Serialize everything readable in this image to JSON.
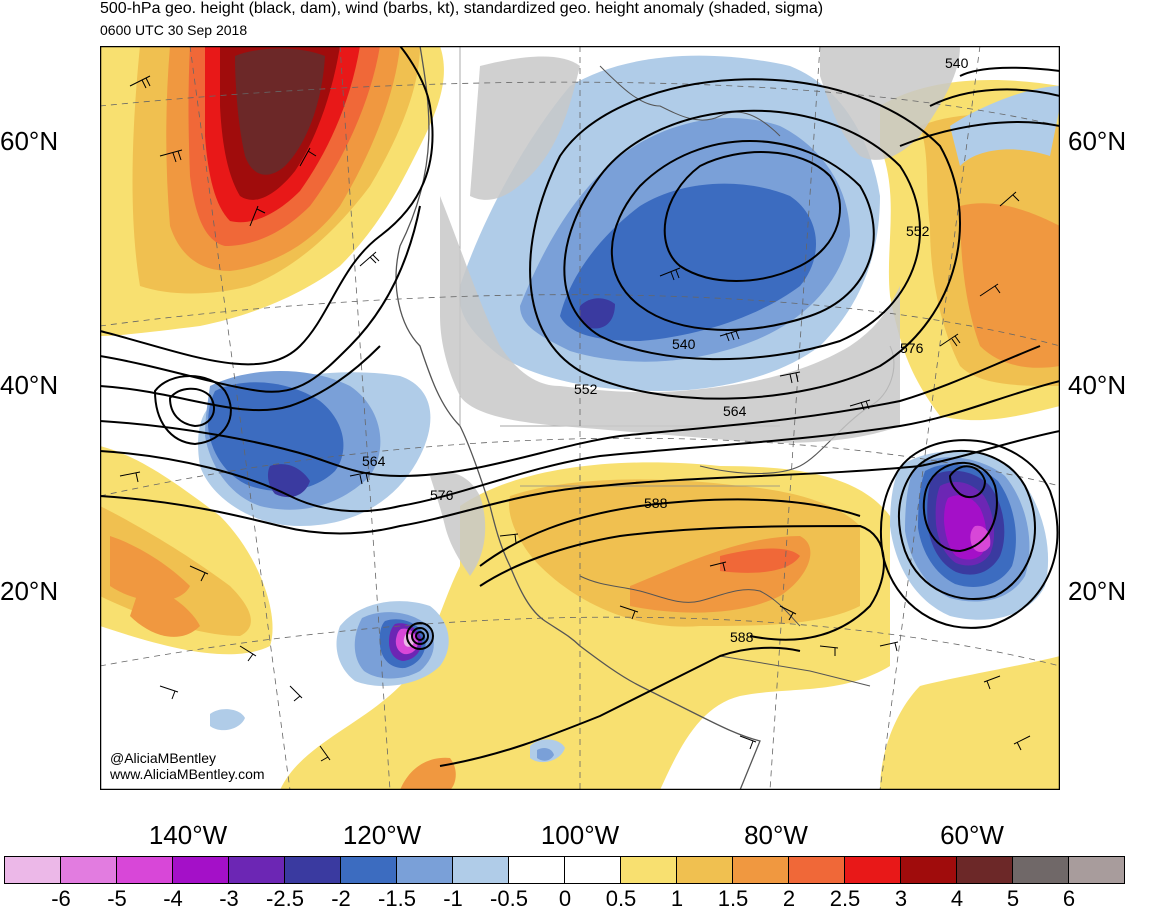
{
  "header": {
    "title": "500-hPa geo. height (black, dam), wind (barbs, kt), standardized geo. height anomaly (shaded, sigma)",
    "subtitle": "0600 UTC 30 Sep 2018"
  },
  "credit": {
    "handle": "@AliciaMBentley",
    "website": "www.AliciaMBentley.com"
  },
  "lat_labels": [
    "60°N",
    "40°N",
    "20°N"
  ],
  "lon_labels": [
    "140°W",
    "120°W",
    "100°W",
    "80°W",
    "60°W"
  ],
  "contour_labels": [
    "540",
    "552",
    "540",
    "552",
    "564",
    "576",
    "564",
    "576",
    "588",
    "588"
  ],
  "colorbar": {
    "ticks": [
      "-6",
      "-5",
      "-4",
      "-3",
      "-2.5",
      "-2",
      "-1.5",
      "-1",
      "-0.5",
      "0",
      "0.5",
      "1",
      "1.5",
      "2",
      "2.5",
      "3",
      "4",
      "5",
      "6"
    ],
    "colors": [
      "#ecb8e8",
      "#e27ce0",
      "#d847d8",
      "#a410c8",
      "#6c26b4",
      "#3a3aa0",
      "#3c6cc0",
      "#7aa0d8",
      "#b0cce8",
      "#ffffff",
      "#ffffff",
      "#f8e070",
      "#f0c050",
      "#f09840",
      "#f06838",
      "#e81818",
      "#a00c0c",
      "#6c2828",
      "#706868",
      "#a89c9c"
    ]
  }
}
